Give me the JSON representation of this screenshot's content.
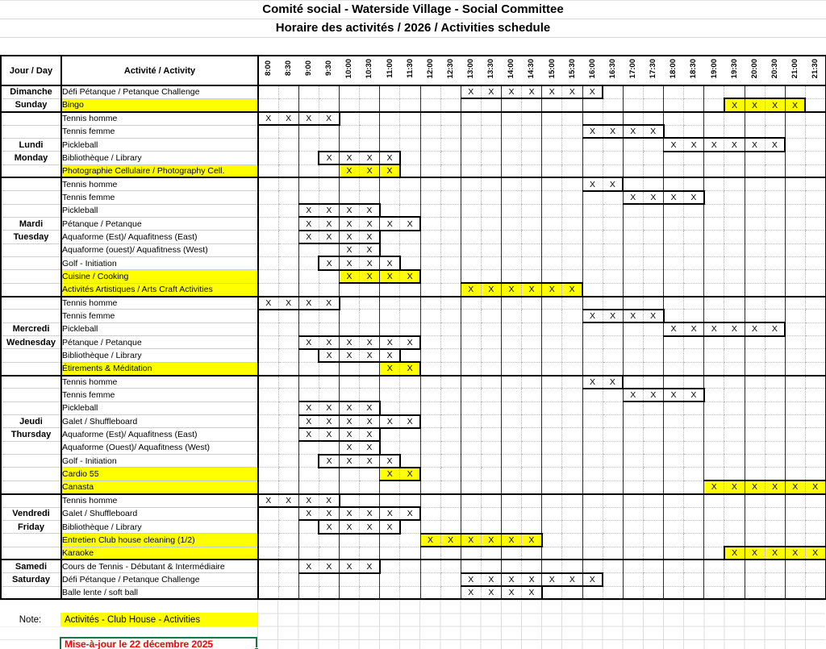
{
  "title": {
    "line1": "Comité social - Waterside Village - Social Committee",
    "line2": "Horaire des activités  / 2026  / Activities schedule"
  },
  "header": {
    "day": "Jour / Day",
    "activity": "Activité / Activity"
  },
  "mark_glyph": "X",
  "times": [
    "8:00",
    "8:30",
    "9:00",
    "9:30",
    "10:00",
    "10:30",
    "11:00",
    "11:30",
    "12:00",
    "12:30",
    "13:00",
    "13:30",
    "14:00",
    "14:30",
    "15:00",
    "15:30",
    "16:00",
    "16:30",
    "17:00",
    "17:30",
    "18:00",
    "18:30",
    "19:00",
    "19:30",
    "20:00",
    "20:30",
    "21:00",
    "21:30"
  ],
  "days": [
    {
      "fr": "Dimanche",
      "en": "Sunday",
      "label_row": 0,
      "activities": [
        {
          "name": "Défi Pétanque / Petanque Challenge",
          "highlight": false,
          "slots": [
            "13:00",
            "13:30",
            "14:00",
            "14:30",
            "15:00",
            "15:30",
            "16:00"
          ]
        },
        {
          "name": "Bingo",
          "highlight": true,
          "slots": [
            "19:30",
            "20:00",
            "20:30",
            "21:00"
          ]
        }
      ]
    },
    {
      "fr": "Lundi",
      "en": "Monday",
      "label_row": 2,
      "activities": [
        {
          "name": "Tennis homme",
          "highlight": false,
          "slots": [
            "8:00",
            "8:30",
            "9:00",
            "9:30"
          ]
        },
        {
          "name": "Tennis femme",
          "highlight": false,
          "slots": [
            "16:00",
            "16:30",
            "17:00",
            "17:30"
          ]
        },
        {
          "name": "Pickleball",
          "highlight": false,
          "slots": [
            "18:00",
            "18:30",
            "19:00",
            "19:30",
            "20:00",
            "20:30"
          ]
        },
        {
          "name": "Bibliothèque / Library",
          "highlight": false,
          "slots": [
            "9:30",
            "10:00",
            "10:30",
            "11:00"
          ]
        },
        {
          "name": "Photographie Cellulaire / Photography Cell.",
          "highlight": true,
          "slots": [
            "10:00",
            "10:30",
            "11:00"
          ]
        }
      ]
    },
    {
      "fr": "Mardi",
      "en": "Tuesday",
      "label_row": 3,
      "activities": [
        {
          "name": "Tennis homme",
          "highlight": false,
          "slots": [
            "16:00",
            "16:30"
          ]
        },
        {
          "name": "Tennis femme",
          "highlight": false,
          "slots": [
            "17:00",
            "17:30",
            "18:00",
            "18:30"
          ]
        },
        {
          "name": "Pickleball",
          "highlight": false,
          "slots": [
            "9:00",
            "9:30",
            "10:00",
            "10:30"
          ]
        },
        {
          "name": "Pétanque / Petanque",
          "highlight": false,
          "slots": [
            "9:00",
            "9:30",
            "10:00",
            "10:30",
            "11:00",
            "11:30"
          ]
        },
        {
          "name": "Aquaforme (Est)/ Aquafitness (East)",
          "highlight": false,
          "slots": [
            "9:00",
            "9:30",
            "10:00",
            "10:30"
          ]
        },
        {
          "name": "Aquaforme (ouest)/ Aquafitness (West)",
          "highlight": false,
          "slots": [
            "10:00",
            "10:30"
          ]
        },
        {
          "name": "Golf - Initiation",
          "highlight": false,
          "slots": [
            "9:30",
            "10:00",
            "10:30",
            "11:00"
          ]
        },
        {
          "name": "Cuisine / Cooking",
          "highlight": true,
          "slots": [
            "10:00",
            "10:30",
            "11:00",
            "11:30"
          ]
        },
        {
          "name": "Activités Artistiques / Arts  Craft Activities",
          "highlight": true,
          "slots": [
            "13:00",
            "13:30",
            "14:00",
            "14:30",
            "15:00",
            "15:30"
          ]
        }
      ]
    },
    {
      "fr": "Mercredi",
      "en": "Wednesday",
      "label_row": 2,
      "activities": [
        {
          "name": "Tennis homme",
          "highlight": false,
          "slots": [
            "8:00",
            "8:30",
            "9:00",
            "9:30"
          ]
        },
        {
          "name": "Tennis femme",
          "highlight": false,
          "slots": [
            "16:00",
            "16:30",
            "17:00",
            "17:30"
          ]
        },
        {
          "name": "Pickleball",
          "highlight": false,
          "slots": [
            "18:00",
            "18:30",
            "19:00",
            "19:30",
            "20:00",
            "20:30"
          ]
        },
        {
          "name": "Pétanque / Petanque",
          "highlight": false,
          "slots": [
            "9:00",
            "9:30",
            "10:00",
            "10:30",
            "11:00",
            "11:30"
          ]
        },
        {
          "name": "Bibliothèque / Library",
          "highlight": false,
          "slots": [
            "9:30",
            "10:00",
            "10:30",
            "11:00"
          ]
        },
        {
          "name": "Étirements & Méditation",
          "highlight": true,
          "slots": [
            "11:00",
            "11:30"
          ]
        }
      ]
    },
    {
      "fr": "Jeudi",
      "en": "Thursday",
      "label_row": 3,
      "activities": [
        {
          "name": "Tennis homme",
          "highlight": false,
          "slots": [
            "16:00",
            "16:30"
          ]
        },
        {
          "name": "Tennis femme",
          "highlight": false,
          "slots": [
            "17:00",
            "17:30",
            "18:00",
            "18:30"
          ]
        },
        {
          "name": "Pickleball",
          "highlight": false,
          "slots": [
            "9:00",
            "9:30",
            "10:00",
            "10:30"
          ]
        },
        {
          "name": "Galet / Shuffleboard",
          "highlight": false,
          "slots": [
            "9:00",
            "9:30",
            "10:00",
            "10:30",
            "11:00",
            "11:30"
          ]
        },
        {
          "name": "Aquaforme (Est)/ Aquafitness (East)",
          "highlight": false,
          "slots": [
            "9:00",
            "9:30",
            "10:00",
            "10:30"
          ]
        },
        {
          "name": "Aquaforme (Ouest)/ Aquafitness (West)",
          "highlight": false,
          "slots": [
            "10:00",
            "10:30"
          ]
        },
        {
          "name": "Golf - Initiation",
          "highlight": false,
          "slots": [
            "9:30",
            "10:00",
            "10:30",
            "11:00"
          ]
        },
        {
          "name": "Cardio 55",
          "highlight": true,
          "slots": [
            "11:00",
            "11:30"
          ]
        },
        {
          "name": "Canasta",
          "highlight": true,
          "slots": [
            "19:00",
            "19:30",
            "20:00",
            "20:30",
            "21:00",
            "21:30"
          ]
        }
      ]
    },
    {
      "fr": "Vendredi",
      "en": "Friday",
      "label_row": 1,
      "activities": [
        {
          "name": "Tennis homme",
          "highlight": false,
          "slots": [
            "8:00",
            "8:30",
            "9:00",
            "9:30"
          ]
        },
        {
          "name": "Galet / Shuffleboard",
          "highlight": false,
          "slots": [
            "9:00",
            "9:30",
            "10:00",
            "10:30",
            "11:00",
            "11:30"
          ]
        },
        {
          "name": "Bibliothèque / Library",
          "highlight": false,
          "slots": [
            "9:30",
            "10:00",
            "10:30",
            "11:00"
          ]
        },
        {
          "name": "Entretien Club house cleaning (1/2)",
          "highlight": true,
          "slots": [
            "12:00",
            "12:30",
            "13:00",
            "13:30",
            "14:00",
            "14:30"
          ]
        },
        {
          "name": "Karaoke",
          "highlight": true,
          "slots": [
            "19:30",
            "20:00",
            "20:30",
            "21:00",
            "21:30"
          ]
        }
      ]
    },
    {
      "fr": "Samedi",
      "en": "Saturday",
      "label_row": 0,
      "activities": [
        {
          "name": "Cours de Tennis - Débutant & Intermédiaire",
          "highlight": false,
          "slots": [
            "9:00",
            "9:30",
            "10:00",
            "10:30"
          ]
        },
        {
          "name": "Défi Pétanque  / Petanque Challenge",
          "highlight": false,
          "slots": [
            "13:00",
            "13:30",
            "14:00",
            "14:30",
            "15:00",
            "15:30",
            "16:00"
          ]
        },
        {
          "name": "Balle lente / soft ball",
          "highlight": false,
          "slots": [
            "13:00",
            "13:30",
            "14:00",
            "14:30"
          ]
        }
      ]
    }
  ],
  "note": {
    "label": "Note:",
    "text": "Activités - Club House  - Activities"
  },
  "footer": {
    "update_text": "Mise-à-jour le 22 décembre  2025"
  },
  "colors": {
    "highlight": "#FFFF00",
    "update_text": "#FF0000",
    "selection_border": "#1F7244"
  }
}
